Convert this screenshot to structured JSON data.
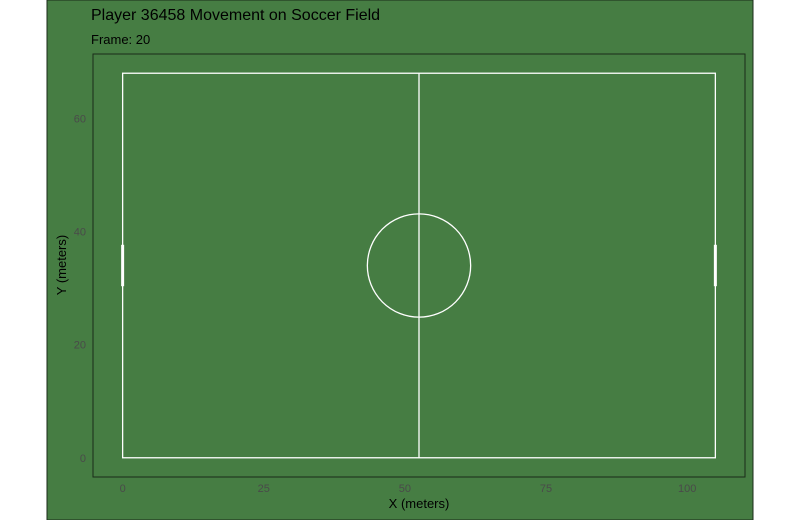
{
  "colors": {
    "background": "#467d43",
    "panel": "#467d43",
    "panel_border": "#1b2a1a",
    "field_lines": "#ffffff",
    "text": "#000000",
    "tick_text": "#4a4a4a"
  },
  "chart_data": {
    "type": "scatter",
    "title": "Player 36458 Movement on Soccer Field",
    "subtitle": "Frame: 20",
    "xlabel": "X (meters)",
    "ylabel": "Y (meters)",
    "xlim": [
      -5.25,
      110.25
    ],
    "ylim": [
      -3.4,
      71.4
    ],
    "x_ticks": [
      0,
      25,
      50,
      75,
      100
    ],
    "y_ticks": [
      0,
      20,
      40,
      60
    ],
    "grid": false,
    "field": {
      "length": 105,
      "width": 68,
      "halfway_x": 52.5,
      "center": [
        52.5,
        34
      ],
      "center_circle_radius": 9.15,
      "goal_mouth_y": [
        30.34,
        37.66
      ]
    },
    "points": []
  }
}
